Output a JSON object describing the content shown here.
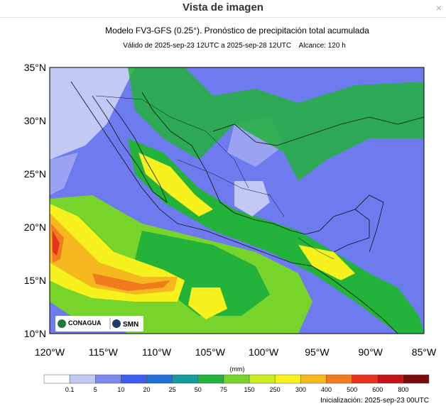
{
  "header": {
    "title": "Vista de imagen",
    "close": "×"
  },
  "map": {
    "title": "Modelo FV3-GFS (0.25°). Pronóstico de precipitación total acumulada",
    "subtitle": "Válido de 2025-sep-23 12UTC a 2025-sep-28 12UTC    Alcance: 120 h",
    "lat_labels": [
      "35°N",
      "30°N",
      "25°N",
      "20°N",
      "15°N",
      "10°N"
    ],
    "lon_labels": [
      "120°W",
      "115°W",
      "110°W",
      "105°W",
      "100°W",
      "95°W",
      "90°W",
      "85°W"
    ],
    "logos": [
      "CONAGUA",
      "SMN"
    ]
  },
  "colorbar": {
    "unit": "(mm)",
    "labels": [
      "0.1",
      "5",
      "10",
      "20",
      "25",
      "50",
      "75",
      "150",
      "250",
      "300",
      "400",
      "500",
      "600",
      "800"
    ],
    "colors": [
      "#ffffff",
      "#c3c9f5",
      "#7d87ee",
      "#3f5cf0",
      "#1e6fd9",
      "#139c9c",
      "#23b23a",
      "#76d42a",
      "#c8ec1e",
      "#f7f21d",
      "#f5b81e",
      "#f07b1e",
      "#e8331c",
      "#c21414",
      "#7a0b0b"
    ]
  },
  "footer": {
    "init": "Inicialización: 2025-sep-23 00UTC"
  }
}
